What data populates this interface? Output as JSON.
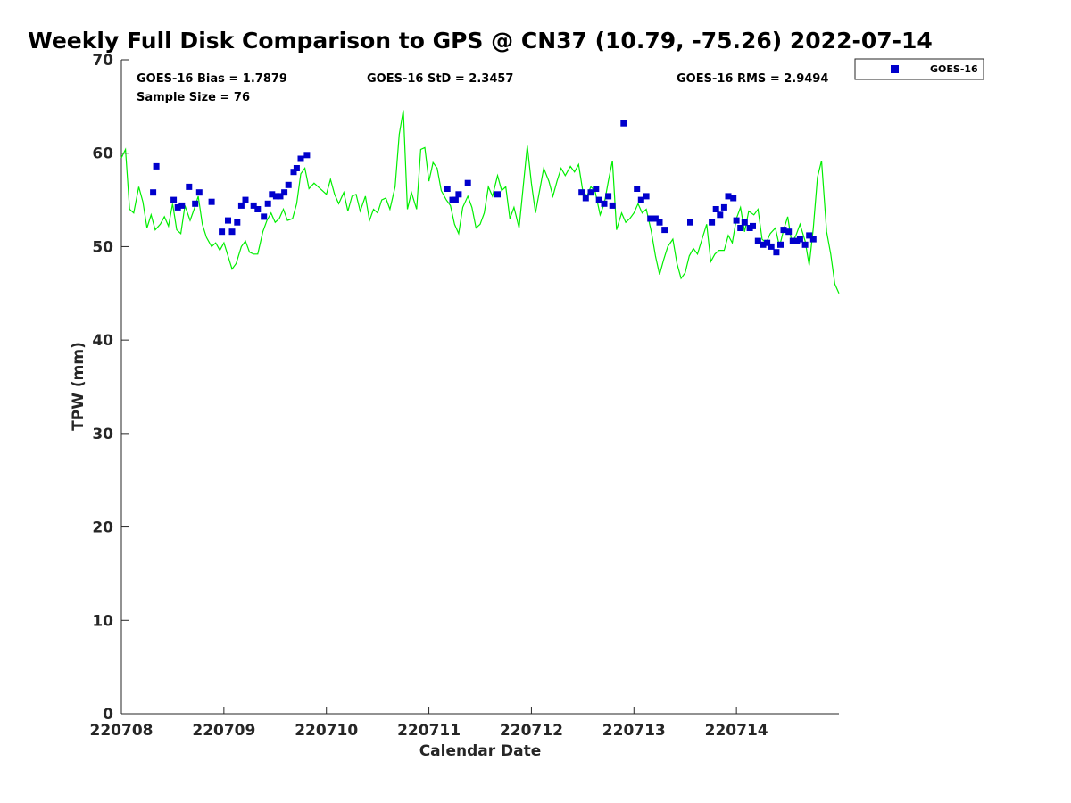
{
  "chart_data": {
    "type": "scatter",
    "title": "Weekly Full Disk Comparison to GPS @ CN37 (10.79, -75.26) 2022-07-14",
    "xlabel": "Calendar Date",
    "ylabel": "TPW (mm)",
    "xlim": [
      0,
      7
    ],
    "ylim": [
      0,
      70
    ],
    "x_ticks": [
      0,
      1,
      2,
      3,
      4,
      5,
      6
    ],
    "x_tick_labels": [
      "220708",
      "220709",
      "220710",
      "220711",
      "220712",
      "220713",
      "220714"
    ],
    "y_ticks": [
      0,
      10,
      20,
      30,
      40,
      50,
      60,
      70
    ],
    "y_tick_labels": [
      "0",
      "10",
      "20",
      "30",
      "40",
      "50",
      "60",
      "70"
    ],
    "x_unit": "days since 220708",
    "legend": {
      "placement": "outside-top-right",
      "entries": [
        "GOES-16"
      ]
    },
    "stats": {
      "bias": "GOES-16 Bias = 1.7879",
      "std": "GOES-16 StD = 2.3457",
      "rms": "GOES-16 RMS = 2.9494",
      "sample": "Sample Size = 76"
    },
    "series": [
      {
        "name": "GOES-16",
        "kind": "scatter",
        "color": "#0000cc",
        "points": [
          [
            0.31,
            55.8
          ],
          [
            0.34,
            58.6
          ],
          [
            0.51,
            55.0
          ],
          [
            0.55,
            54.2
          ],
          [
            0.59,
            54.4
          ],
          [
            0.66,
            56.4
          ],
          [
            0.72,
            54.6
          ],
          [
            0.76,
            55.8
          ],
          [
            0.88,
            54.8
          ],
          [
            0.98,
            51.6
          ],
          [
            1.04,
            52.8
          ],
          [
            1.08,
            51.6
          ],
          [
            1.13,
            52.6
          ],
          [
            1.17,
            54.4
          ],
          [
            1.21,
            55.0
          ],
          [
            1.29,
            54.4
          ],
          [
            1.33,
            54.0
          ],
          [
            1.39,
            53.2
          ],
          [
            1.43,
            54.6
          ],
          [
            1.47,
            55.6
          ],
          [
            1.51,
            55.4
          ],
          [
            1.55,
            55.4
          ],
          [
            1.59,
            55.8
          ],
          [
            1.63,
            56.6
          ],
          [
            1.68,
            58.0
          ],
          [
            1.71,
            58.4
          ],
          [
            1.75,
            59.4
          ],
          [
            1.81,
            59.8
          ],
          [
            3.18,
            56.2
          ],
          [
            3.23,
            55.0
          ],
          [
            3.26,
            55.0
          ],
          [
            3.29,
            55.6
          ],
          [
            3.38,
            56.8
          ],
          [
            3.67,
            55.6
          ],
          [
            4.49,
            55.8
          ],
          [
            4.53,
            55.2
          ],
          [
            4.58,
            55.8
          ],
          [
            4.63,
            56.2
          ],
          [
            4.66,
            55.0
          ],
          [
            4.71,
            54.6
          ],
          [
            4.75,
            55.4
          ],
          [
            4.79,
            54.4
          ],
          [
            4.9,
            63.2
          ],
          [
            5.03,
            56.2
          ],
          [
            5.07,
            55.0
          ],
          [
            5.12,
            55.4
          ],
          [
            5.16,
            53.0
          ],
          [
            5.21,
            53.0
          ],
          [
            5.25,
            52.6
          ],
          [
            5.3,
            51.8
          ],
          [
            5.55,
            52.6
          ],
          [
            5.76,
            52.6
          ],
          [
            5.8,
            54.0
          ],
          [
            5.84,
            53.4
          ],
          [
            5.88,
            54.2
          ],
          [
            5.92,
            55.4
          ],
          [
            5.97,
            55.2
          ],
          [
            6.0,
            52.8
          ],
          [
            6.04,
            52.0
          ],
          [
            6.08,
            52.6
          ],
          [
            6.13,
            52.0
          ],
          [
            6.16,
            52.2
          ],
          [
            6.21,
            50.6
          ],
          [
            6.26,
            50.2
          ],
          [
            6.3,
            50.4
          ],
          [
            6.34,
            50.0
          ],
          [
            6.39,
            49.4
          ],
          [
            6.43,
            50.2
          ],
          [
            6.46,
            51.8
          ],
          [
            6.51,
            51.6
          ],
          [
            6.55,
            50.6
          ],
          [
            6.59,
            50.6
          ],
          [
            6.62,
            50.8
          ],
          [
            6.67,
            50.2
          ],
          [
            6.71,
            51.2
          ],
          [
            6.75,
            50.8
          ]
        ]
      },
      {
        "name": "GPS",
        "kind": "line",
        "color": "#00ee00",
        "points": [
          [
            0.0,
            59.5
          ],
          [
            0.04,
            60.4
          ],
          [
            0.08,
            54.0
          ],
          [
            0.12,
            53.6
          ],
          [
            0.17,
            56.4
          ],
          [
            0.21,
            54.8
          ],
          [
            0.25,
            52.0
          ],
          [
            0.29,
            53.4
          ],
          [
            0.33,
            51.8
          ],
          [
            0.38,
            52.4
          ],
          [
            0.42,
            53.2
          ],
          [
            0.46,
            52.2
          ],
          [
            0.5,
            54.6
          ],
          [
            0.54,
            51.8
          ],
          [
            0.58,
            51.4
          ],
          [
            0.62,
            54.4
          ],
          [
            0.67,
            52.8
          ],
          [
            0.71,
            54.0
          ],
          [
            0.75,
            55.4
          ],
          [
            0.79,
            52.4
          ],
          [
            0.83,
            51.0
          ],
          [
            0.88,
            50.0
          ],
          [
            0.92,
            50.4
          ],
          [
            0.96,
            49.6
          ],
          [
            1.0,
            50.4
          ],
          [
            1.04,
            49.0
          ],
          [
            1.08,
            47.6
          ],
          [
            1.12,
            48.2
          ],
          [
            1.17,
            50.0
          ],
          [
            1.21,
            50.6
          ],
          [
            1.25,
            49.4
          ],
          [
            1.29,
            49.2
          ],
          [
            1.33,
            49.2
          ],
          [
            1.38,
            51.6
          ],
          [
            1.42,
            52.8
          ],
          [
            1.46,
            53.6
          ],
          [
            1.5,
            52.6
          ],
          [
            1.54,
            53.0
          ],
          [
            1.58,
            54.0
          ],
          [
            1.62,
            52.8
          ],
          [
            1.67,
            53.0
          ],
          [
            1.71,
            54.6
          ],
          [
            1.75,
            57.8
          ],
          [
            1.79,
            58.4
          ],
          [
            1.83,
            56.2
          ],
          [
            1.88,
            56.8
          ],
          [
            1.92,
            56.4
          ],
          [
            1.96,
            56.0
          ],
          [
            2.0,
            55.6
          ],
          [
            2.04,
            57.2
          ],
          [
            2.08,
            55.6
          ],
          [
            2.12,
            54.6
          ],
          [
            2.17,
            55.8
          ],
          [
            2.21,
            53.8
          ],
          [
            2.25,
            55.4
          ],
          [
            2.29,
            55.6
          ],
          [
            2.33,
            53.8
          ],
          [
            2.38,
            55.4
          ],
          [
            2.42,
            52.8
          ],
          [
            2.46,
            54.0
          ],
          [
            2.5,
            53.6
          ],
          [
            2.54,
            55.0
          ],
          [
            2.58,
            55.2
          ],
          [
            2.62,
            54.0
          ],
          [
            2.67,
            56.4
          ],
          [
            2.71,
            62.0
          ],
          [
            2.75,
            64.6
          ],
          [
            2.79,
            54.0
          ],
          [
            2.83,
            55.8
          ],
          [
            2.88,
            54.0
          ],
          [
            2.92,
            60.4
          ],
          [
            2.96,
            60.6
          ],
          [
            3.0,
            57.0
          ],
          [
            3.04,
            59.0
          ],
          [
            3.08,
            58.4
          ],
          [
            3.12,
            56.0
          ],
          [
            3.17,
            55.0
          ],
          [
            3.21,
            54.4
          ],
          [
            3.25,
            52.4
          ],
          [
            3.29,
            51.4
          ],
          [
            3.33,
            54.2
          ],
          [
            3.38,
            55.4
          ],
          [
            3.42,
            54.2
          ],
          [
            3.46,
            52.0
          ],
          [
            3.5,
            52.4
          ],
          [
            3.54,
            53.6
          ],
          [
            3.58,
            56.4
          ],
          [
            3.62,
            55.4
          ],
          [
            3.67,
            57.6
          ],
          [
            3.71,
            56.0
          ],
          [
            3.75,
            56.4
          ],
          [
            3.79,
            53.0
          ],
          [
            3.83,
            54.2
          ],
          [
            3.88,
            52.0
          ],
          [
            3.92,
            56.4
          ],
          [
            3.96,
            60.8
          ],
          [
            4.0,
            56.8
          ],
          [
            4.04,
            53.6
          ],
          [
            4.08,
            56.0
          ],
          [
            4.12,
            58.4
          ],
          [
            4.17,
            57.0
          ],
          [
            4.21,
            55.4
          ],
          [
            4.25,
            57.0
          ],
          [
            4.29,
            58.4
          ],
          [
            4.33,
            57.6
          ],
          [
            4.38,
            58.6
          ],
          [
            4.42,
            58.0
          ],
          [
            4.46,
            58.8
          ],
          [
            4.5,
            56.0
          ],
          [
            4.54,
            55.4
          ],
          [
            4.58,
            56.4
          ],
          [
            4.62,
            56.0
          ],
          [
            4.67,
            53.4
          ],
          [
            4.71,
            54.6
          ],
          [
            4.75,
            57.0
          ],
          [
            4.79,
            59.2
          ],
          [
            4.83,
            51.8
          ],
          [
            4.88,
            53.6
          ],
          [
            4.92,
            52.6
          ],
          [
            4.96,
            53.0
          ],
          [
            5.0,
            53.6
          ],
          [
            5.04,
            54.6
          ],
          [
            5.08,
            53.6
          ],
          [
            5.12,
            54.0
          ],
          [
            5.17,
            51.6
          ],
          [
            5.21,
            49.0
          ],
          [
            5.25,
            47.0
          ],
          [
            5.29,
            48.6
          ],
          [
            5.33,
            50.0
          ],
          [
            5.38,
            50.8
          ],
          [
            5.42,
            48.2
          ],
          [
            5.46,
            46.6
          ],
          [
            5.5,
            47.2
          ],
          [
            5.54,
            49.0
          ],
          [
            5.58,
            49.8
          ],
          [
            5.62,
            49.2
          ],
          [
            5.67,
            51.0
          ],
          [
            5.71,
            52.4
          ],
          [
            5.75,
            48.4
          ],
          [
            5.79,
            49.2
          ],
          [
            5.83,
            49.6
          ],
          [
            5.88,
            49.6
          ],
          [
            5.92,
            51.2
          ],
          [
            5.96,
            50.4
          ],
          [
            6.0,
            53.0
          ],
          [
            6.04,
            54.2
          ],
          [
            6.08,
            51.6
          ],
          [
            6.12,
            53.8
          ],
          [
            6.17,
            53.4
          ],
          [
            6.21,
            54.0
          ],
          [
            6.25,
            50.8
          ],
          [
            6.29,
            50.4
          ],
          [
            6.33,
            51.4
          ],
          [
            6.38,
            52.0
          ],
          [
            6.42,
            50.0
          ],
          [
            6.46,
            51.8
          ],
          [
            6.5,
            53.2
          ],
          [
            6.54,
            50.4
          ],
          [
            6.58,
            51.2
          ],
          [
            6.62,
            52.4
          ],
          [
            6.67,
            50.6
          ],
          [
            6.71,
            48.0
          ],
          [
            6.75,
            52.0
          ],
          [
            6.79,
            57.4
          ],
          [
            6.83,
            59.2
          ],
          [
            6.88,
            51.6
          ],
          [
            6.92,
            49.2
          ],
          [
            6.96,
            46.0
          ],
          [
            7.0,
            45.0
          ]
        ]
      }
    ]
  }
}
